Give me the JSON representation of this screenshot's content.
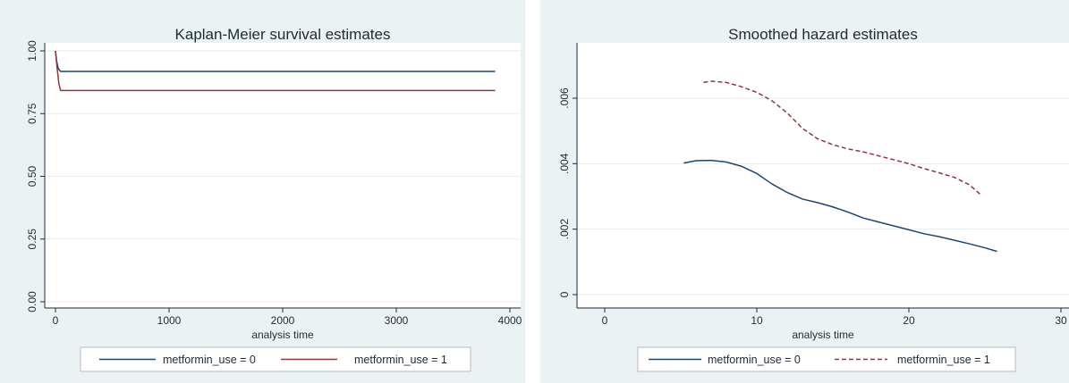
{
  "colors": {
    "background": "#eaf2f3",
    "plot_area": "#ffffff",
    "grid": "#e7eef0",
    "axis": "#1e2a36",
    "series_0": "#1a476f",
    "series_1": "#90353b"
  },
  "chart_data": [
    {
      "type": "line",
      "title": "Kaplan-Meier survival estimates",
      "xlabel": "analysis time",
      "ylabel": "",
      "xlim": [
        0,
        4000
      ],
      "ylim": [
        0,
        1
      ],
      "xticks": [
        0,
        1000,
        2000,
        3000,
        4000
      ],
      "xtick_labels": [
        "0",
        "1000",
        "2000",
        "3000",
        "4000"
      ],
      "yticks": [
        0,
        0.25,
        0.5,
        0.75,
        1.0
      ],
      "ytick_labels": [
        "0.00",
        "0.25",
        "0.50",
        "0.75",
        "1.00"
      ],
      "grid": true,
      "legend_position": "bottom",
      "series": [
        {
          "name": "metformin_use = 0",
          "style": "solid",
          "color": "#1a476f",
          "points": [
            [
              0,
              1.0
            ],
            [
              10,
              0.96
            ],
            [
              25,
              0.93
            ],
            [
              45,
              0.918
            ],
            [
              3870,
              0.918
            ]
          ]
        },
        {
          "name": "metformin_use = 1",
          "style": "solid",
          "color": "#90353b",
          "points": [
            [
              0,
              1.0
            ],
            [
              15,
              0.93
            ],
            [
              30,
              0.87
            ],
            [
              45,
              0.842
            ],
            [
              3870,
              0.842
            ]
          ]
        }
      ]
    },
    {
      "type": "line",
      "title": "Smoothed hazard estimates",
      "xlabel": "analysis time",
      "ylabel": "",
      "xlim": [
        0,
        30
      ],
      "ylim": [
        0,
        0.0066
      ],
      "xticks": [
        0,
        10,
        20,
        30
      ],
      "xtick_labels": [
        "0",
        "10",
        "20",
        "30"
      ],
      "yticks": [
        0,
        0.002,
        0.004,
        0.006
      ],
      "ytick_labels": [
        "0",
        ".002",
        ".004",
        ".006"
      ],
      "grid": true,
      "legend_position": "bottom",
      "series": [
        {
          "name": "metformin_use = 0",
          "style": "solid",
          "color": "#1a476f",
          "points": [
            [
              5.2,
              0.00402
            ],
            [
              6,
              0.00409
            ],
            [
              7,
              0.0041
            ],
            [
              8,
              0.00405
            ],
            [
              9,
              0.00392
            ],
            [
              10,
              0.0037
            ],
            [
              11,
              0.00338
            ],
            [
              12,
              0.00312
            ],
            [
              13,
              0.00292
            ],
            [
              14,
              0.00281
            ],
            [
              15,
              0.00268
            ],
            [
              16,
              0.00252
            ],
            [
              17,
              0.00234
            ],
            [
              18,
              0.00222
            ],
            [
              19,
              0.0021
            ],
            [
              20,
              0.00198
            ],
            [
              21,
              0.00186
            ],
            [
              22,
              0.00177
            ],
            [
              23,
              0.00166
            ],
            [
              24,
              0.00155
            ],
            [
              25,
              0.00143
            ],
            [
              25.8,
              0.00132
            ]
          ]
        },
        {
          "name": "metformin_use = 1",
          "style": "dashed",
          "color": "#90353b",
          "points": [
            [
              6.5,
              0.00648
            ],
            [
              7,
              0.00652
            ],
            [
              8,
              0.00648
            ],
            [
              9,
              0.00635
            ],
            [
              10,
              0.00618
            ],
            [
              11,
              0.00592
            ],
            [
              12,
              0.00555
            ],
            [
              13,
              0.00508
            ],
            [
              14,
              0.00476
            ],
            [
              15,
              0.00458
            ],
            [
              16,
              0.00445
            ],
            [
              17,
              0.00436
            ],
            [
              18,
              0.00424
            ],
            [
              19,
              0.00412
            ],
            [
              20,
              0.004
            ],
            [
              21,
              0.00385
            ],
            [
              22,
              0.00372
            ],
            [
              23,
              0.00358
            ],
            [
              24,
              0.00335
            ],
            [
              24.8,
              0.00302
            ]
          ]
        }
      ]
    }
  ]
}
